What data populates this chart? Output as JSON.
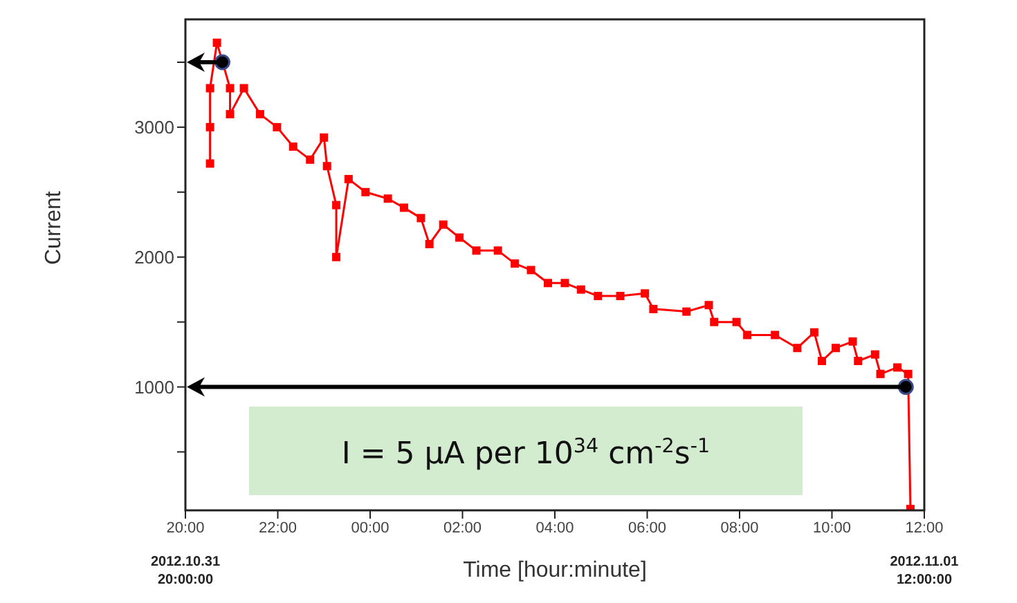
{
  "chart_data": {
    "type": "line",
    "xlabel": "Time  [hour:minute]",
    "ylabel": "Current",
    "xlim": [
      "2012-10-31T20:00",
      "2012-11-01T12:00"
    ],
    "xticks": [
      {
        "value": "2012-10-31T20:00",
        "label": "20:00"
      },
      {
        "value": "2012-10-31T22:00",
        "label": "22:00"
      },
      {
        "value": "2012-11-01T00:00",
        "label": "00:00"
      },
      {
        "value": "2012-11-01T02:00",
        "label": "02:00"
      },
      {
        "value": "2012-11-01T04:00",
        "label": "04:00"
      },
      {
        "value": "2012-11-01T06:00",
        "label": "06:00"
      },
      {
        "value": "2012-11-01T08:00",
        "label": "08:00"
      },
      {
        "value": "2012-11-01T10:00",
        "label": "10:00"
      },
      {
        "value": "2012-11-01T12:00",
        "label": "12:00"
      }
    ],
    "ylim": [
      50,
      3830
    ],
    "yticks": [
      {
        "value": 500,
        "label": null
      },
      1000,
      {
        "value": 1500,
        "label": null
      },
      2000,
      {
        "value": 2500,
        "label": null
      },
      3000,
      {
        "value": 3500,
        "label": null
      }
    ],
    "series": [
      {
        "color": "#ff0000",
        "marker": "square",
        "line_style": "solid",
        "x": [
          "2012-10-31T20:32",
          "2012-10-31T20:32",
          "2012-10-31T20:32",
          "2012-10-31T20:41",
          "2012-10-31T20:48",
          "2012-10-31T20:58",
          "2012-10-31T20:58",
          "2012-10-31T21:16",
          "2012-10-31T21:37",
          "2012-10-31T21:59",
          "2012-10-31T22:20",
          "2012-10-31T22:42",
          "2012-10-31T23:00",
          "2012-10-31T23:04",
          "2012-10-31T23:16",
          "2012-10-31T23:16",
          "2012-10-31T23:32",
          "2012-10-31T23:54",
          "2012-11-01T00:23",
          "2012-11-01T00:44",
          "2012-11-01T01:06",
          "2012-11-01T01:17",
          "2012-11-01T01:35",
          "2012-11-01T01:56",
          "2012-11-01T02:18",
          "2012-11-01T02:46",
          "2012-11-01T03:08",
          "2012-11-01T03:29",
          "2012-11-01T03:51",
          "2012-11-01T04:13",
          "2012-11-01T04:34",
          "2012-11-01T04:56",
          "2012-11-01T05:25",
          "2012-11-01T05:57",
          "2012-11-01T06:08",
          "2012-11-01T06:51",
          "2012-11-01T07:20",
          "2012-11-01T07:27",
          "2012-11-01T07:56",
          "2012-11-01T08:10",
          "2012-11-01T08:46",
          "2012-11-01T09:15",
          "2012-11-01T09:37",
          "2012-11-01T09:47",
          "2012-11-01T10:05",
          "2012-11-01T10:27",
          "2012-11-01T10:34",
          "2012-11-01T10:56",
          "2012-11-01T11:03",
          "2012-11-01T11:25",
          "2012-11-01T11:39",
          "2012-11-01T11:42"
        ],
        "values": [
          2720,
          3000,
          3300,
          3650,
          null,
          3300,
          3100,
          3300,
          3100,
          3000,
          2850,
          2750,
          2920,
          2700,
          2400,
          2000,
          2600,
          2500,
          2450,
          2380,
          2300,
          2100,
          2250,
          2150,
          2050,
          2050,
          1950,
          1900,
          1800,
          1800,
          1750,
          1700,
          1700,
          1720,
          1600,
          1580,
          1630,
          1500,
          1500,
          1400,
          1400,
          1300,
          1420,
          1200,
          1300,
          1350,
          1200,
          1250,
          1100,
          1150,
          1100,
          60
        ]
      },
      {
        "type": "scatter",
        "color": "#000000",
        "marker": "circle",
        "x": [
          "2012-10-31T20:48",
          "2012-11-01T11:36"
        ],
        "values": [
          3500,
          1000
        ]
      }
    ],
    "annotations": [
      "I = 5 µA per 10$^{34}$ cm$^{-2}$s$^{-1}$",
      "2012.10.31\n20:00:00",
      "2012.11.01\n12:00:00"
    ]
  }
}
